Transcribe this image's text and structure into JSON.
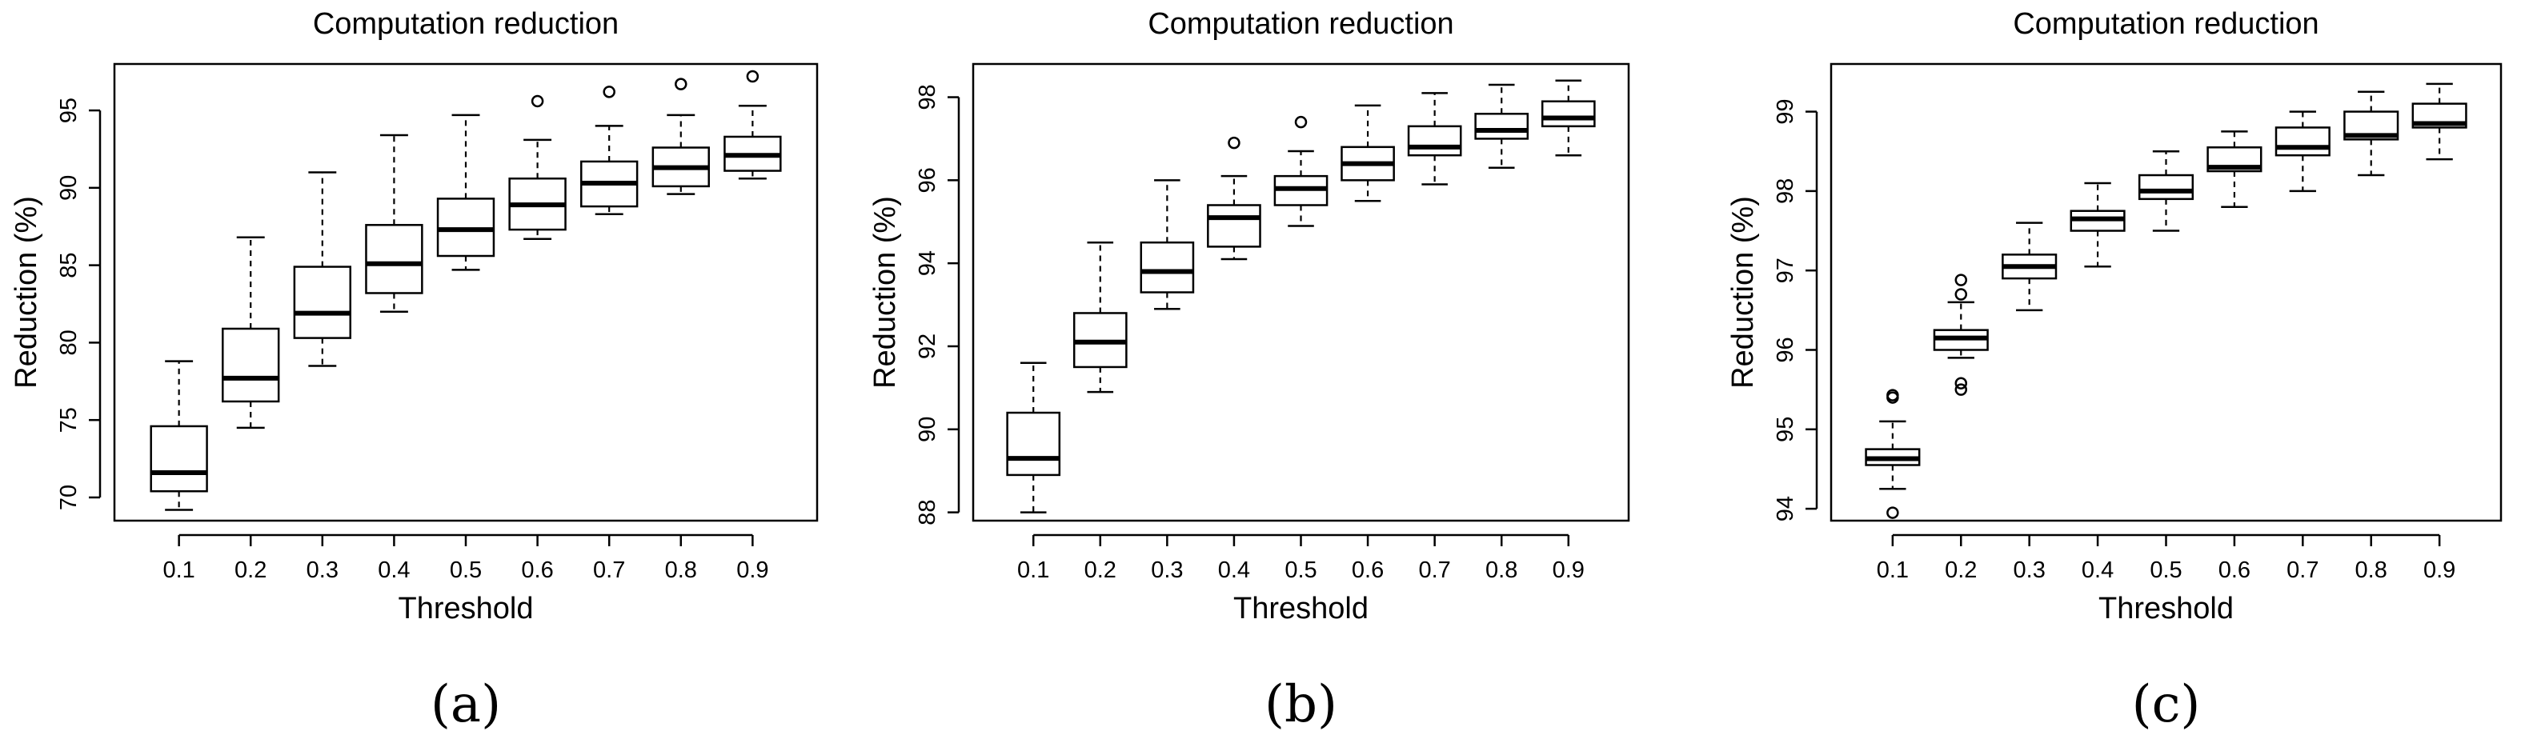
{
  "chart_data": [
    {
      "type": "boxplot",
      "panel_label": "(a)",
      "title": "Computation reduction",
      "xlabel": "Threshold",
      "ylabel": "Reduction (%)",
      "categories": [
        "0.1",
        "0.2",
        "0.3",
        "0.4",
        "0.5",
        "0.6",
        "0.7",
        "0.8",
        "0.9"
      ],
      "ylim": [
        68.5,
        98.0
      ],
      "yticks": [
        70,
        75,
        80,
        85,
        90,
        95
      ],
      "ytick_labels": [
        "70",
        "75",
        "80",
        "85",
        "90",
        "95"
      ],
      "boxes": [
        {
          "category": "0.1",
          "whisker_low": 69.2,
          "q1": 70.4,
          "median": 71.6,
          "q3": 74.6,
          "whisker_high": 78.8,
          "outliers": []
        },
        {
          "category": "0.2",
          "whisker_low": 74.5,
          "q1": 76.2,
          "median": 77.7,
          "q3": 80.9,
          "whisker_high": 86.8,
          "outliers": []
        },
        {
          "category": "0.3",
          "whisker_low": 78.5,
          "q1": 80.3,
          "median": 81.9,
          "q3": 84.9,
          "whisker_high": 91.0,
          "outliers": []
        },
        {
          "category": "0.4",
          "whisker_low": 82.0,
          "q1": 83.2,
          "median": 85.1,
          "q3": 87.6,
          "whisker_high": 93.4,
          "outliers": []
        },
        {
          "category": "0.5",
          "whisker_low": 84.7,
          "q1": 85.6,
          "median": 87.3,
          "q3": 89.3,
          "whisker_high": 94.7,
          "outliers": []
        },
        {
          "category": "0.6",
          "whisker_low": 86.7,
          "q1": 87.3,
          "median": 88.9,
          "q3": 90.6,
          "whisker_high": 93.1,
          "outliers": [
            95.6
          ]
        },
        {
          "category": "0.7",
          "whisker_low": 88.3,
          "q1": 88.8,
          "median": 90.3,
          "q3": 91.7,
          "whisker_high": 94.0,
          "outliers": [
            96.2
          ]
        },
        {
          "category": "0.8",
          "whisker_low": 89.6,
          "q1": 90.1,
          "median": 91.3,
          "q3": 92.6,
          "whisker_high": 94.7,
          "outliers": [
            96.7
          ]
        },
        {
          "category": "0.9",
          "whisker_low": 90.6,
          "q1": 91.1,
          "median": 92.1,
          "q3": 93.3,
          "whisker_high": 95.3,
          "outliers": [
            97.2
          ]
        }
      ]
    },
    {
      "type": "boxplot",
      "panel_label": "(b)",
      "title": "Computation reduction",
      "xlabel": "Threshold",
      "ylabel": "Reduction (%)",
      "categories": [
        "0.1",
        "0.2",
        "0.3",
        "0.4",
        "0.5",
        "0.6",
        "0.7",
        "0.8",
        "0.9"
      ],
      "ylim": [
        87.8,
        98.8
      ],
      "yticks": [
        88,
        90,
        92,
        94,
        96,
        98
      ],
      "ytick_labels": [
        "88",
        "90",
        "92",
        "94",
        "96",
        "98"
      ],
      "boxes": [
        {
          "category": "0.1",
          "whisker_low": 88.0,
          "q1": 88.9,
          "median": 89.3,
          "q3": 90.4,
          "whisker_high": 91.6,
          "outliers": []
        },
        {
          "category": "0.2",
          "whisker_low": 90.9,
          "q1": 91.5,
          "median": 92.1,
          "q3": 92.8,
          "whisker_high": 94.5,
          "outliers": []
        },
        {
          "category": "0.3",
          "whisker_low": 92.9,
          "q1": 93.3,
          "median": 93.8,
          "q3": 94.5,
          "whisker_high": 96.0,
          "outliers": []
        },
        {
          "category": "0.4",
          "whisker_low": 94.1,
          "q1": 94.4,
          "median": 95.1,
          "q3": 95.4,
          "whisker_high": 96.1,
          "outliers": [
            96.9
          ]
        },
        {
          "category": "0.5",
          "whisker_low": 94.9,
          "q1": 95.4,
          "median": 95.8,
          "q3": 96.1,
          "whisker_high": 96.7,
          "outliers": [
            97.4
          ]
        },
        {
          "category": "0.6",
          "whisker_low": 95.5,
          "q1": 96.0,
          "median": 96.4,
          "q3": 96.8,
          "whisker_high": 97.8,
          "outliers": []
        },
        {
          "category": "0.7",
          "whisker_low": 95.9,
          "q1": 96.6,
          "median": 96.8,
          "q3": 97.3,
          "whisker_high": 98.1,
          "outliers": []
        },
        {
          "category": "0.8",
          "whisker_low": 96.3,
          "q1": 97.0,
          "median": 97.2,
          "q3": 97.6,
          "whisker_high": 98.3,
          "outliers": []
        },
        {
          "category": "0.9",
          "whisker_low": 96.6,
          "q1": 97.3,
          "median": 97.5,
          "q3": 97.9,
          "whisker_high": 98.4,
          "outliers": []
        }
      ]
    },
    {
      "type": "boxplot",
      "panel_label": "(c)",
      "title": "Computation reduction",
      "xlabel": "Threshold",
      "ylabel": "Reduction (%)",
      "categories": [
        "0.1",
        "0.2",
        "0.3",
        "0.4",
        "0.5",
        "0.6",
        "0.7",
        "0.8",
        "0.9"
      ],
      "ylim": [
        93.85,
        99.6
      ],
      "yticks": [
        94,
        95,
        96,
        97,
        98,
        99
      ],
      "ytick_labels": [
        "94",
        "95",
        "96",
        "97",
        "98",
        "99"
      ],
      "boxes": [
        {
          "category": "0.1",
          "whisker_low": 94.25,
          "q1": 94.55,
          "median": 94.63,
          "q3": 94.75,
          "whisker_high": 95.1,
          "outliers": [
            93.95,
            95.4,
            95.43
          ]
        },
        {
          "category": "0.2",
          "whisker_low": 95.9,
          "q1": 96.0,
          "median": 96.15,
          "q3": 96.25,
          "whisker_high": 96.6,
          "outliers": [
            95.5,
            95.58,
            96.7,
            96.88
          ]
        },
        {
          "category": "0.3",
          "whisker_low": 96.5,
          "q1": 96.9,
          "median": 97.05,
          "q3": 97.2,
          "whisker_high": 97.6,
          "outliers": []
        },
        {
          "category": "0.4",
          "whisker_low": 97.05,
          "q1": 97.5,
          "median": 97.65,
          "q3": 97.75,
          "whisker_high": 98.1,
          "outliers": []
        },
        {
          "category": "0.5",
          "whisker_low": 97.5,
          "q1": 97.9,
          "median": 98.0,
          "q3": 98.2,
          "whisker_high": 98.5,
          "outliers": []
        },
        {
          "category": "0.6",
          "whisker_low": 97.8,
          "q1": 98.25,
          "median": 98.3,
          "q3": 98.55,
          "whisker_high": 98.75,
          "outliers": []
        },
        {
          "category": "0.7",
          "whisker_low": 98.0,
          "q1": 98.45,
          "median": 98.55,
          "q3": 98.8,
          "whisker_high": 99.0,
          "outliers": []
        },
        {
          "category": "0.8",
          "whisker_low": 98.2,
          "q1": 98.65,
          "median": 98.7,
          "q3": 99.0,
          "whisker_high": 99.25,
          "outliers": []
        },
        {
          "category": "0.9",
          "whisker_low": 98.4,
          "q1": 98.8,
          "median": 98.85,
          "q3": 99.1,
          "whisker_high": 99.35,
          "outliers": []
        }
      ]
    }
  ]
}
